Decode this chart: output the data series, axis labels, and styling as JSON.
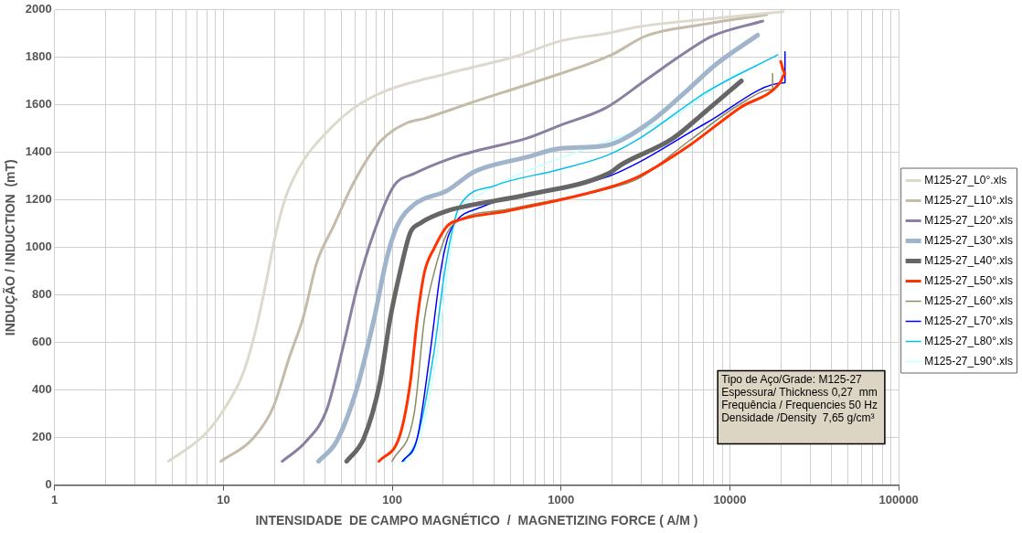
{
  "chart_data": {
    "type": "line",
    "xlabel": "INTENSIDADE  DE CAMPO MAGNÉTICO  /  MAGNETIZING FORCE ( A/M )",
    "ylabel": "INDUÇÃO / INDUCTION  (mT)",
    "log": "x",
    "xlim": [
      1,
      100000
    ],
    "xticks": [
      1,
      10,
      100,
      1000,
      10000,
      100000
    ],
    "ylim": [
      0,
      2000
    ],
    "yticks": [
      0,
      200,
      400,
      600,
      800,
      1000,
      1200,
      1400,
      1600,
      1800,
      2000
    ],
    "grid": true,
    "legend": "right",
    "marker": "none",
    "line_style": "solid",
    "annotations": [
      "Tipo de Aço/Grade: M125-27\nEspessura/ Thickness 0,27  mm\nFrequência / Frequencies 50 Hz\nDensidade /Density  7,65 g/cm³"
    ],
    "series": [
      {
        "name": "M125-27_L0°.xls",
        "color": "#ddd9cc",
        "x": [
          4.72,
          7.64,
          10.0,
          13.1,
          15.6,
          17.9,
          20.5,
          23.6,
          29.8,
          40.8,
          59.2,
          93,
          212,
          307,
          533,
          1003,
          1906,
          2885,
          7250,
          20600
        ],
        "values": [
          100,
          209,
          315,
          472,
          657,
          854,
          1063,
          1220,
          1366,
          1484,
          1587,
          1661,
          1732,
          1760,
          1803,
          1870,
          1902,
          1929,
          1961,
          1992
        ]
      },
      {
        "name": "M125-27_L10°.xls",
        "color": "#c4bca8",
        "x": [
          9.66,
          15,
          19.7,
          24.6,
          29.8,
          35.6,
          45,
          59,
          84.6,
          122,
          155,
          307,
          762,
          1995,
          3175,
          7250,
          16500
        ],
        "values": [
          100,
          197,
          327,
          539,
          709,
          933,
          1091,
          1272,
          1445,
          1524,
          1543,
          1614,
          1705,
          1811,
          1890,
          1941,
          1980
        ]
      },
      {
        "name": "M125-27_L20°.xls",
        "color": "#8a7fa0",
        "x": [
          22.3,
          31,
          40.8,
          51.5,
          61.7,
          77.9,
          102.5,
          135,
          212,
          307,
          611,
          1003,
          1836,
          3175,
          5510,
          7870,
          15650
        ],
        "values": [
          100,
          185,
          315,
          590,
          827,
          1063,
          1260,
          1311,
          1370,
          1405,
          1457,
          1516,
          1587,
          1705,
          1823,
          1890,
          1953
        ]
      },
      {
        "name": "M125-27_L30°.xls",
        "color": "#a0b4cc",
        "x": [
          36.6,
          46.9,
          61.7,
          77.9,
          93,
          107,
          135,
          212,
          307,
          611,
          1003,
          1836,
          3310,
          5210,
          8320,
          14600
        ],
        "values": [
          100,
          185,
          406,
          697,
          957,
          1091,
          1181,
          1240,
          1319,
          1378,
          1417,
          1429,
          1524,
          1642,
          1772,
          1894
        ]
      },
      {
        "name": "M125-27_L40°.xls",
        "color": "#666666",
        "x": [
          53.7,
          67.9,
          84.6,
          97,
          111,
          128,
          146.5,
          212,
          307,
          611,
          1906,
          2290,
          4550,
          7250,
          11700
        ],
        "values": [
          100,
          197,
          433,
          697,
          894,
          1063,
          1102,
          1154,
          1181,
          1220,
          1311,
          1350,
          1457,
          1575,
          1701
        ]
      },
      {
        "name": "M125-27_L50°.xls",
        "color": "#ff3300",
        "x": [
          83.4,
          111,
          128,
          140.6,
          155,
          177,
          212,
          244,
          484,
          1906,
          2885,
          5740,
          11400,
          19800,
          21200,
          20000
        ],
        "values": [
          100,
          209,
          433,
          697,
          894,
          996,
          1091,
          1114,
          1154,
          1252,
          1299,
          1429,
          1587,
          1693,
          1732,
          1783
        ]
      },
      {
        "name": "M125-27_L60°.xls",
        "color": "#8c8c64",
        "x": [
          99.7,
          135,
          155,
          177,
          212,
          244,
          484,
          1906,
          2885,
          5740,
          11400,
          17900,
          17900
        ],
        "values": [
          100,
          303,
          697,
          894,
          1063,
          1110,
          1161,
          1248,
          1291,
          1449,
          1602,
          1665,
          1732
        ]
      },
      {
        "name": "M125-27_L70°.xls",
        "color": "#0000ff",
        "x": [
          114.6,
          140.6,
          168,
          193,
          212,
          234,
          334,
          1906,
          2885,
          7250,
          21200,
          21200
        ],
        "values": [
          100,
          197,
          563,
          894,
          1035,
          1102,
          1169,
          1299,
          1358,
          1524,
          1693,
          1823
        ]
      },
      {
        "name": "M125-27_L80°.xls",
        "color": "#00c0f0",
        "x": [
          117,
          140.6,
          177,
          204,
          234,
          254,
          405,
          962,
          1906,
          2885,
          7250,
          19240
        ],
        "values": [
          100,
          197,
          563,
          894,
          1114,
          1181,
          1260,
          1327,
          1390,
          1457,
          1654,
          1811
        ]
      },
      {
        "name": "M125-27_L90°.xls",
        "color": "#c8ffff",
        "x": [
          122,
          146,
          185,
          212,
          244,
          279,
          484,
          1836,
          4550,
          9550,
          11500
        ],
        "values": [
          100,
          197,
          563,
          894,
          1154,
          1193,
          1287,
          1445,
          1547,
          1705,
          1740
        ]
      }
    ]
  }
}
